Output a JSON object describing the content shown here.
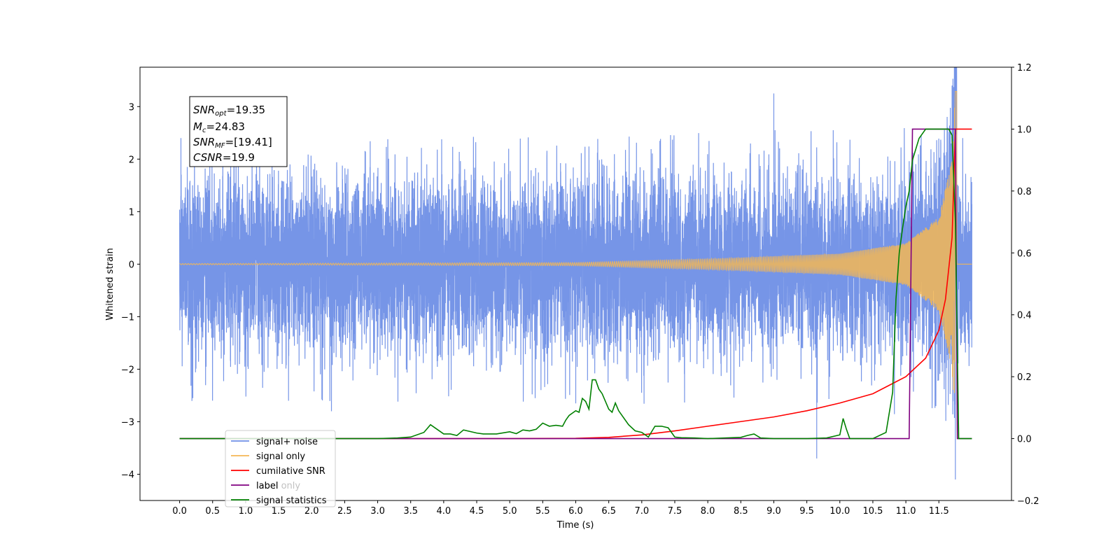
{
  "chart_data": {
    "type": "line",
    "xlabel": "Time (s)",
    "ylabel": "Whitened strain",
    "xlim": [
      -0.6,
      12.6
    ],
    "ylim": [
      -4.5,
      3.75
    ],
    "y2lim": [
      -0.2,
      1.2
    ],
    "x_ticks": [
      "0.0",
      "0.5",
      "1.0",
      "1.5",
      "2.0",
      "2.5",
      "3.0",
      "3.5",
      "4.0",
      "4.5",
      "5.0",
      "5.5",
      "6.0",
      "6.5",
      "7.0",
      "7.5",
      "8.0",
      "8.5",
      "9.0",
      "9.5",
      "10.0",
      "10.5",
      "11.0",
      "11.5"
    ],
    "y_ticks": [
      "3",
      "2",
      "1",
      "0",
      "−1",
      "−2",
      "−3",
      "−4"
    ],
    "y2_ticks": [
      "1.2",
      "1.0",
      "0.8",
      "0.6",
      "0.4",
      "0.2",
      "0.0",
      "−0.2"
    ],
    "grid": false,
    "legend_position": "lower-left",
    "colors": {
      "signal_noise": "#6f8fe6",
      "signal_only": "#f5b754",
      "cumulative_snr": "#ff0000",
      "label": "#800080",
      "signal_statistics": "#008000"
    },
    "annotation": {
      "snr_opt_base": "SNR",
      "snr_opt_sub": "opt",
      "snr_opt_value": "=19.35",
      "mc_base": "M",
      "mc_sub": "c",
      "mc_value": "=24.83",
      "snr_mf_base": "SNR",
      "snr_mf_sub": "MF",
      "snr_mf_value": "=[19.41]",
      "csnr_base": "CSNR",
      "csnr_value": "=19.9"
    },
    "legend": [
      {
        "label": "signal+ noise",
        "key": "signal_noise"
      },
      {
        "label": "signal only",
        "key": "signal_only"
      },
      {
        "label": "cumilative SNR",
        "key": "cumulative_snr"
      },
      {
        "label": "label",
        "key": "label"
      },
      {
        "label": "signal statistics",
        "key": "signal_statistics"
      }
    ],
    "hidden_legend_entries": [
      "label only"
    ],
    "series": [
      {
        "name": "signal+ noise",
        "axis": "left",
        "x_range": [
          0.0,
          12.0
        ],
        "noise_band": [
          -1.5,
          1.5
        ],
        "notable_peaks": [
          [
            0.02,
            2.4
          ],
          [
            0.2,
            -2.55
          ],
          [
            1.4,
            2.65
          ],
          [
            1.65,
            -2.6
          ],
          [
            2.3,
            -2.8
          ],
          [
            6.0,
            -2.65
          ],
          [
            9.0,
            3.25
          ],
          [
            9.65,
            -3.7
          ],
          [
            9.9,
            2.55
          ],
          [
            11.7,
            3.4
          ],
          [
            11.75,
            -4.1
          ]
        ]
      },
      {
        "name": "signal only",
        "axis": "left",
        "type": "chirp",
        "x_range": [
          0.0,
          12.0
        ],
        "merger_time": 11.75,
        "amplitude_envelope": [
          [
            0.0,
            0.01
          ],
          [
            6.0,
            0.03
          ],
          [
            8.0,
            0.1
          ],
          [
            10.0,
            0.2
          ],
          [
            11.0,
            0.4
          ],
          [
            11.5,
            0.9
          ],
          [
            11.7,
            2.0
          ],
          [
            11.75,
            3.3
          ]
        ]
      },
      {
        "name": "cumilative SNR",
        "axis": "right",
        "x": [
          0.0,
          5.0,
          6.0,
          6.5,
          7.0,
          7.5,
          8.0,
          8.5,
          9.0,
          9.5,
          10.0,
          10.5,
          11.0,
          11.3,
          11.5,
          11.6,
          11.7,
          11.75,
          12.0
        ],
        "y": [
          0.0,
          0.0,
          0.001,
          0.004,
          0.012,
          0.025,
          0.04,
          0.055,
          0.07,
          0.09,
          0.115,
          0.145,
          0.2,
          0.26,
          0.35,
          0.45,
          0.65,
          1.0,
          1.0
        ]
      },
      {
        "name": "label",
        "axis": "right",
        "x": [
          0.0,
          11.05,
          11.1,
          11.75,
          11.78,
          12.0
        ],
        "y": [
          0.0,
          0.0,
          1.0,
          1.0,
          0.0,
          0.0
        ]
      },
      {
        "name": "signal statistics",
        "axis": "right",
        "x": [
          0.0,
          3.0,
          3.3,
          3.5,
          3.7,
          3.8,
          3.9,
          4.0,
          4.1,
          4.2,
          4.3,
          4.5,
          4.6,
          4.8,
          5.0,
          5.1,
          5.2,
          5.3,
          5.4,
          5.5,
          5.6,
          5.7,
          5.8,
          5.85,
          5.9,
          6.0,
          6.05,
          6.1,
          6.15,
          6.2,
          6.25,
          6.3,
          6.35,
          6.4,
          6.5,
          6.55,
          6.6,
          6.65,
          6.7,
          6.8,
          6.9,
          7.0,
          7.1,
          7.2,
          7.3,
          7.4,
          7.5,
          7.6,
          7.8,
          8.0,
          8.5,
          8.6,
          8.7,
          8.8,
          9.0,
          9.5,
          9.8,
          10.0,
          10.05,
          10.1,
          10.15,
          10.5,
          10.7,
          10.8,
          10.85,
          10.9,
          10.95,
          11.0,
          11.05,
          11.1,
          11.2,
          11.3,
          11.4,
          11.5,
          11.6,
          11.65,
          11.7,
          11.75,
          11.8,
          11.9,
          12.0
        ],
        "y": [
          0.0,
          0.0,
          0.002,
          0.005,
          0.02,
          0.045,
          0.03,
          0.015,
          0.015,
          0.01,
          0.028,
          0.018,
          0.015,
          0.015,
          0.022,
          0.016,
          0.028,
          0.025,
          0.03,
          0.05,
          0.04,
          0.043,
          0.04,
          0.06,
          0.075,
          0.09,
          0.085,
          0.13,
          0.12,
          0.095,
          0.19,
          0.19,
          0.16,
          0.145,
          0.095,
          0.085,
          0.115,
          0.09,
          0.075,
          0.045,
          0.025,
          0.02,
          0.005,
          0.04,
          0.04,
          0.035,
          0.005,
          0.003,
          0.002,
          0.0,
          0.004,
          0.01,
          0.015,
          0.002,
          0.0,
          0.0,
          0.002,
          0.012,
          0.065,
          0.03,
          0.0,
          0.0,
          0.02,
          0.15,
          0.45,
          0.6,
          0.68,
          0.75,
          0.8,
          0.9,
          0.97,
          1.0,
          1.0,
          1.0,
          1.0,
          1.0,
          0.98,
          0.7,
          0.0,
          0.0,
          0.0
        ]
      }
    ]
  }
}
